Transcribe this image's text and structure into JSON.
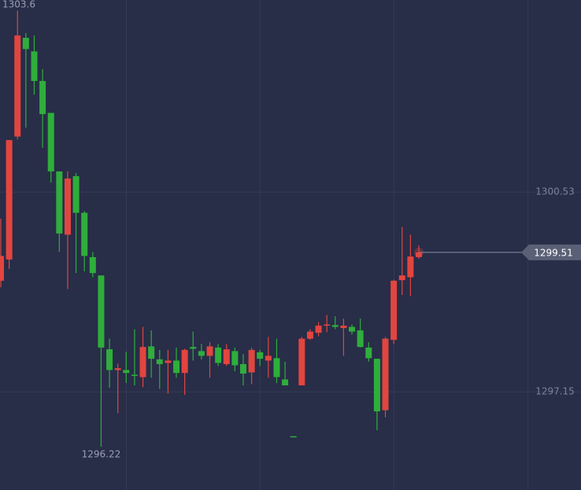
{
  "chart_data": {
    "type": "candlestick",
    "open": [
      1299.03,
      1299.39,
      1301.47,
      1303.14,
      1302.91,
      1302.41,
      1301.87,
      1300.88,
      1299.81,
      1300.8,
      1300.18,
      1299.43,
      1299.12,
      1297.87,
      1297.52,
      1297.52,
      1297.44,
      1297.4,
      1297.92,
      1297.7,
      1297.64,
      1297.68,
      1297.47,
      1297.91,
      1297.84,
      1297.76,
      1297.9,
      1297.62,
      1297.84,
      1297.62,
      1297.48,
      1297.82,
      1297.68,
      1297.72,
      1297.36,
      1296.4,
      1297.26,
      1298.05,
      1298.15,
      1298.27,
      1298.28,
      1298.23,
      1298.25,
      1298.19,
      1297.9,
      1297.71,
      1296.84,
      1298.03,
      1299.04,
      1299.09,
      1299.43
    ],
    "high": [
      1300.08,
      1301.41,
      1303.6,
      1303.22,
      1303.18,
      1302.61,
      1301.87,
      1300.88,
      1300.88,
      1300.85,
      1300.21,
      1299.52,
      1299.12,
      1298.05,
      1297.63,
      1297.83,
      1298.21,
      1298.25,
      1298.19,
      1297.86,
      1297.86,
      1297.9,
      1297.88,
      1298.17,
      1297.96,
      1297.99,
      1297.96,
      1297.96,
      1297.9,
      1297.79,
      1297.9,
      1297.86,
      1298.08,
      1298.05,
      1297.66,
      1296.4,
      1298.08,
      1298.21,
      1298.33,
      1298.45,
      1298.43,
      1298.39,
      1298.29,
      1298.39,
      1297.99,
      1297.71,
      1298.08,
      1299.05,
      1299.94,
      1299.81,
      1299.63
    ],
    "low": [
      1298.92,
      1299.23,
      1301.42,
      1301.62,
      1302.18,
      1301.28,
      1300.69,
      1299.52,
      1298.89,
      1299.16,
      1299.19,
      1299.09,
      1296.22,
      1297.22,
      1296.79,
      1297.3,
      1297.26,
      1297.23,
      1297.39,
      1297.2,
      1297.12,
      1297.39,
      1297.1,
      1297.68,
      1297.7,
      1297.39,
      1297.59,
      1297.59,
      1297.5,
      1297.26,
      1297.28,
      1297.59,
      1297.39,
      1297.3,
      1297.26,
      1296.39,
      1297.26,
      1298.03,
      1298.09,
      1298.16,
      1298.21,
      1297.76,
      1298.12,
      1297.9,
      1297.66,
      1296.5,
      1296.72,
      1297.96,
      1298.79,
      1298.77,
      1299.4
    ],
    "close": [
      1299.45,
      1301.41,
      1303.18,
      1302.95,
      1302.41,
      1301.85,
      1300.88,
      1299.83,
      1300.76,
      1300.18,
      1299.45,
      1299.16,
      1297.9,
      1297.52,
      1297.55,
      1297.47,
      1297.42,
      1297.91,
      1297.71,
      1297.62,
      1297.68,
      1297.47,
      1297.86,
      1297.88,
      1297.76,
      1297.92,
      1297.64,
      1297.87,
      1297.6,
      1297.46,
      1297.86,
      1297.71,
      1297.76,
      1297.4,
      1297.26,
      1296.39,
      1298.05,
      1298.17,
      1298.27,
      1298.29,
      1298.25,
      1298.27,
      1298.17,
      1297.91,
      1297.72,
      1296.82,
      1298.05,
      1299.03,
      1299.12,
      1299.44,
      1299.51
    ],
    "up_color": "#e2453f",
    "down_color": "#2fae3c",
    "ylim": [
      1295.49,
      1303.78
    ],
    "yticks": [
      1300.53,
      1297.15
    ],
    "grid": true
  }
}
